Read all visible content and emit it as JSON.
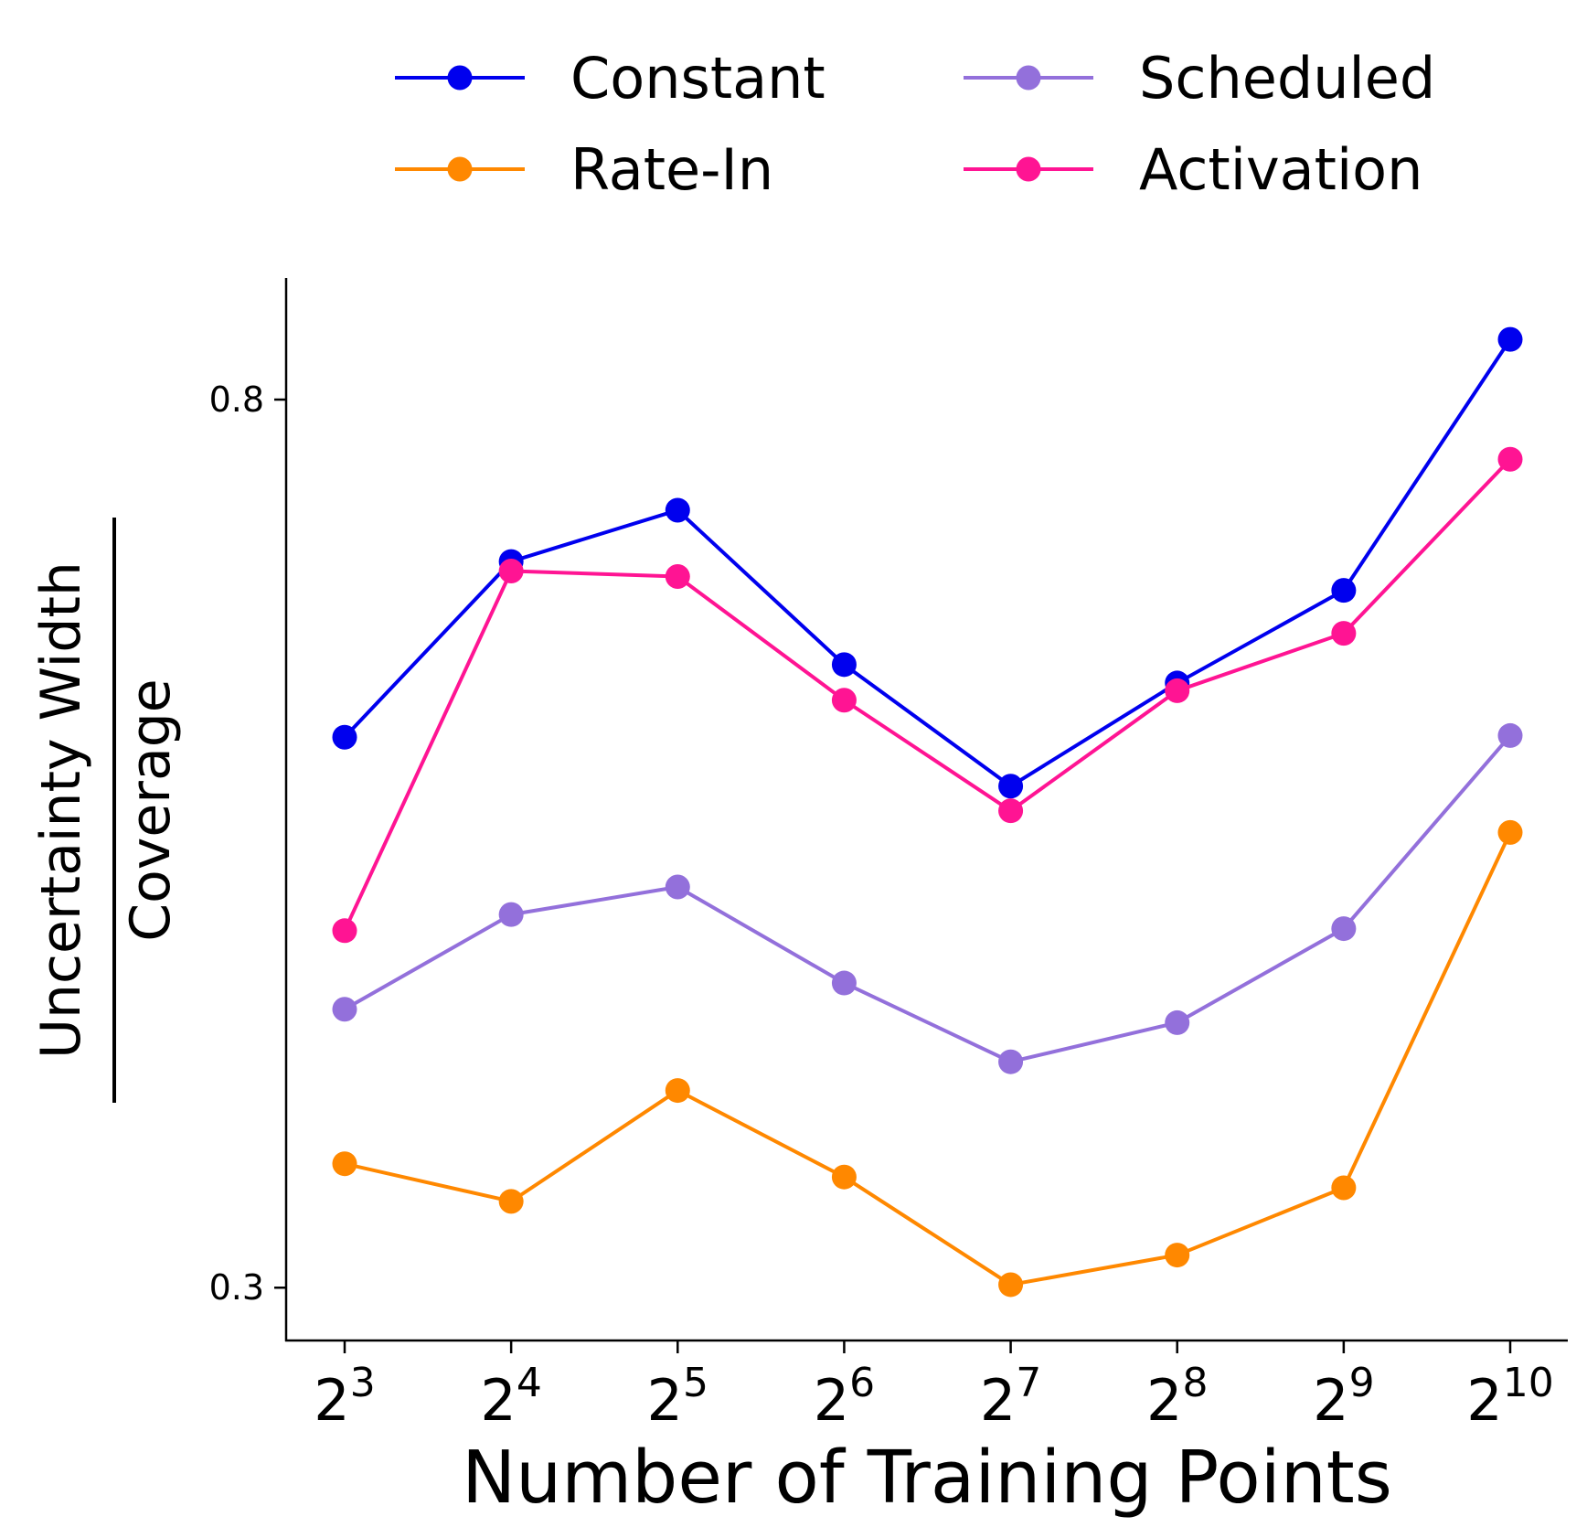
{
  "chart_data": {
    "type": "line",
    "title": "",
    "xlabel": "Number of Training Points",
    "ylabel": {
      "numerator": "Uncertainty Width",
      "denominator": "Coverage"
    },
    "x_ticks": [
      {
        "base": "2",
        "exp": "3"
      },
      {
        "base": "2",
        "exp": "4"
      },
      {
        "base": "2",
        "exp": "5"
      },
      {
        "base": "2",
        "exp": "6"
      },
      {
        "base": "2",
        "exp": "7"
      },
      {
        "base": "2",
        "exp": "8"
      },
      {
        "base": "2",
        "exp": "9"
      },
      {
        "base": "2",
        "exp": "10"
      }
    ],
    "x": [
      8,
      16,
      32,
      64,
      128,
      256,
      512,
      1024
    ],
    "y_scale": "log",
    "y_ticks": [
      0.3,
      0.8
    ],
    "y_tick_labels": [
      "0.3",
      "0.8"
    ],
    "ylim": [
      0.283,
      0.915
    ],
    "legend_position": "top",
    "series": [
      {
        "name": "Constant",
        "color": "#0000ee",
        "values": [
          0.551,
          0.669,
          0.708,
          0.597,
          0.522,
          0.585,
          0.648,
          0.855
        ]
      },
      {
        "name": "Rate-In",
        "color": "#ff8800",
        "values": [
          0.344,
          0.33,
          0.373,
          0.339,
          0.301,
          0.311,
          0.335,
          0.496
        ]
      },
      {
        "name": "Scheduled",
        "color": "#9370db",
        "values": [
          0.408,
          0.453,
          0.467,
          0.42,
          0.385,
          0.402,
          0.446,
          0.552
        ]
      },
      {
        "name": "Activation",
        "color": "#ff1493",
        "values": [
          0.445,
          0.662,
          0.658,
          0.574,
          0.508,
          0.58,
          0.618,
          0.749
        ]
      }
    ]
  }
}
